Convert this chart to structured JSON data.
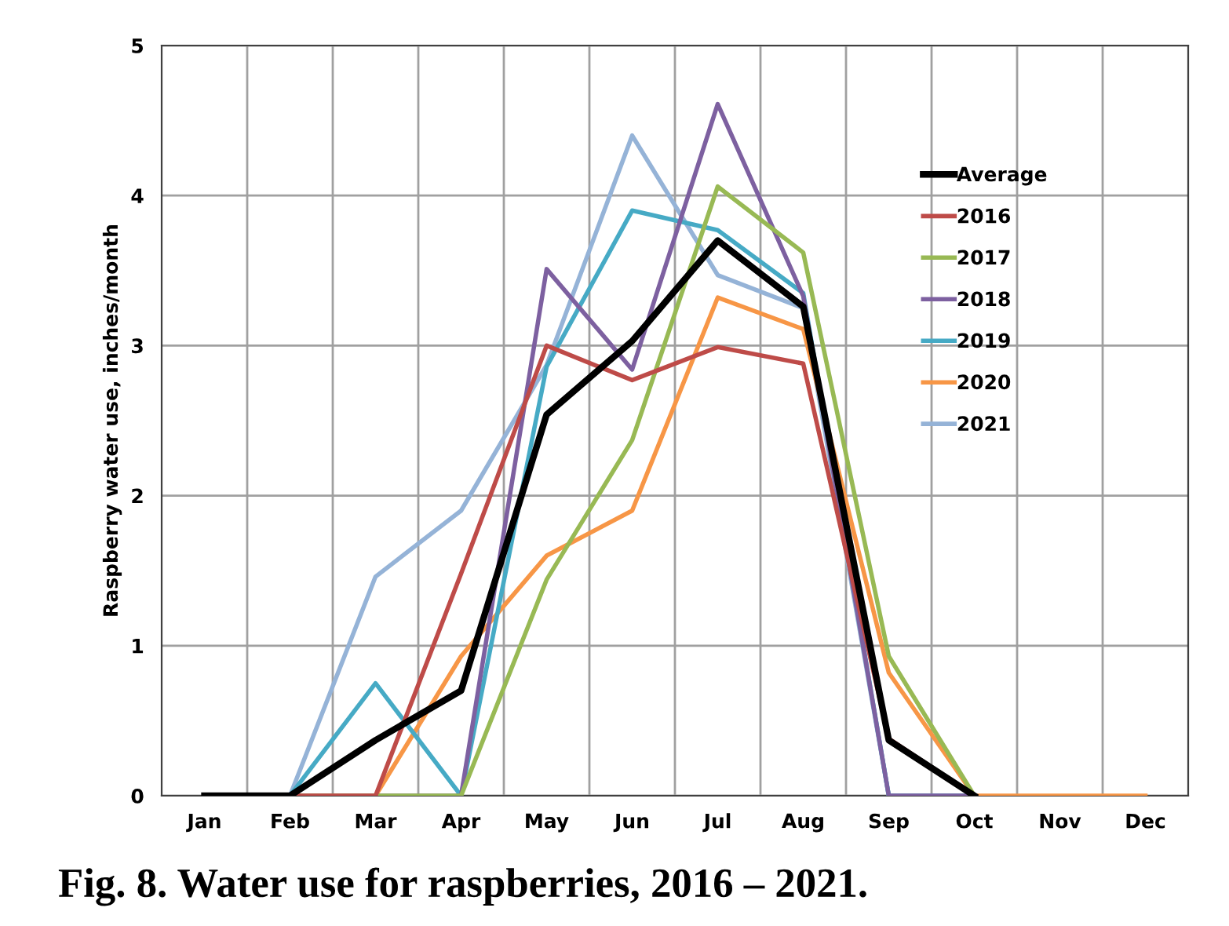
{
  "chart_data": {
    "type": "line",
    "title": "Fig. 8. Water use for raspberries, 2016 – 2021.",
    "ylabel": "Raspberry water use, inches/month",
    "categories": [
      "Jan",
      "Feb",
      "Mar",
      "Apr",
      "May",
      "Jun",
      "Jul",
      "Aug",
      "Sep",
      "Oct",
      "Nov",
      "Dec"
    ],
    "series": [
      {
        "name": "Average",
        "color": "#000000",
        "values": [
          0,
          0,
          0.37,
          0.7,
          2.54,
          3.03,
          3.7,
          3.26,
          0.37,
          0,
          null,
          null
        ]
      },
      {
        "name": "2016",
        "color": "#be4b48",
        "values": [
          0,
          0,
          0,
          1.48,
          3.0,
          2.77,
          2.99,
          2.88,
          0.38,
          0,
          null,
          null
        ]
      },
      {
        "name": "2017",
        "color": "#98b954",
        "values": [
          0,
          0,
          0,
          0,
          1.44,
          2.37,
          4.06,
          3.62,
          0.93,
          0,
          null,
          null
        ]
      },
      {
        "name": "2018",
        "color": "#7d60a0",
        "values": [
          0,
          0,
          0,
          0,
          3.51,
          2.84,
          4.61,
          3.33,
          0,
          0,
          null,
          null
        ]
      },
      {
        "name": "2019",
        "color": "#46aac5",
        "values": [
          0,
          0,
          0.75,
          0,
          2.86,
          3.9,
          3.77,
          3.35,
          0,
          0,
          null,
          null
        ]
      },
      {
        "name": "2020",
        "color": "#f79646",
        "values": [
          0,
          0,
          0,
          0.93,
          1.6,
          1.9,
          3.32,
          3.11,
          0.82,
          0,
          0,
          0
        ]
      },
      {
        "name": "2021",
        "color": "#95b3d7",
        "values": [
          0,
          0,
          1.46,
          1.9,
          2.87,
          4.4,
          3.47,
          3.25,
          0,
          0,
          null,
          null
        ]
      }
    ],
    "ylim": [
      0,
      5
    ],
    "yticks": [
      0,
      1,
      2,
      3,
      4,
      5
    ],
    "grid": true,
    "legend": "right",
    "marker": "none",
    "line_style": "solid"
  }
}
